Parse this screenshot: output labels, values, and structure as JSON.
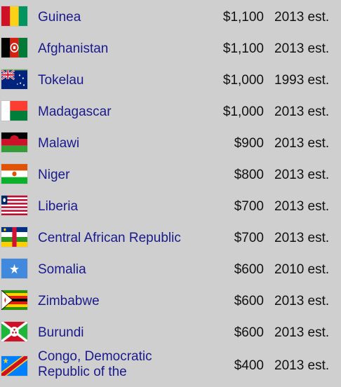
{
  "rows": [
    {
      "country": "Guinea",
      "value": "$1,100",
      "note": "2013 est.",
      "flag": "guinea-flag-icon"
    },
    {
      "country": "Afghanistan",
      "value": "$1,100",
      "note": "2013 est.",
      "flag": "afghanistan-flag-icon"
    },
    {
      "country": "Tokelau",
      "value": "$1,000",
      "note": "1993 est.",
      "flag": "tokelau-flag-icon"
    },
    {
      "country": "Madagascar",
      "value": "$1,000",
      "note": "2013 est.",
      "flag": "madagascar-flag-icon"
    },
    {
      "country": "Malawi",
      "value": "$900",
      "note": "2013 est.",
      "flag": "malawi-flag-icon"
    },
    {
      "country": "Niger",
      "value": "$800",
      "note": "2013 est.",
      "flag": "niger-flag-icon"
    },
    {
      "country": "Liberia",
      "value": "$700",
      "note": "2013 est.",
      "flag": "liberia-flag-icon"
    },
    {
      "country": "Central African Republic",
      "value": "$700",
      "note": "2013 est.",
      "flag": "central-african-republic-flag-icon"
    },
    {
      "country": "Somalia",
      "value": "$600",
      "note": "2010 est.",
      "flag": "somalia-flag-icon"
    },
    {
      "country": "Zimbabwe",
      "value": "$600",
      "note": "2013 est.",
      "flag": "zimbabwe-flag-icon"
    },
    {
      "country": "Burundi",
      "value": "$600",
      "note": "2013 est.",
      "flag": "burundi-flag-icon"
    },
    {
      "country": "Congo, Democratic Republic of the",
      "value": "$400",
      "note": "2013 est.",
      "flag": "congo-drc-flag-icon"
    }
  ],
  "colors": {
    "background": "#cfcfcf",
    "link": "#1a1a8c",
    "text": "#111111"
  }
}
